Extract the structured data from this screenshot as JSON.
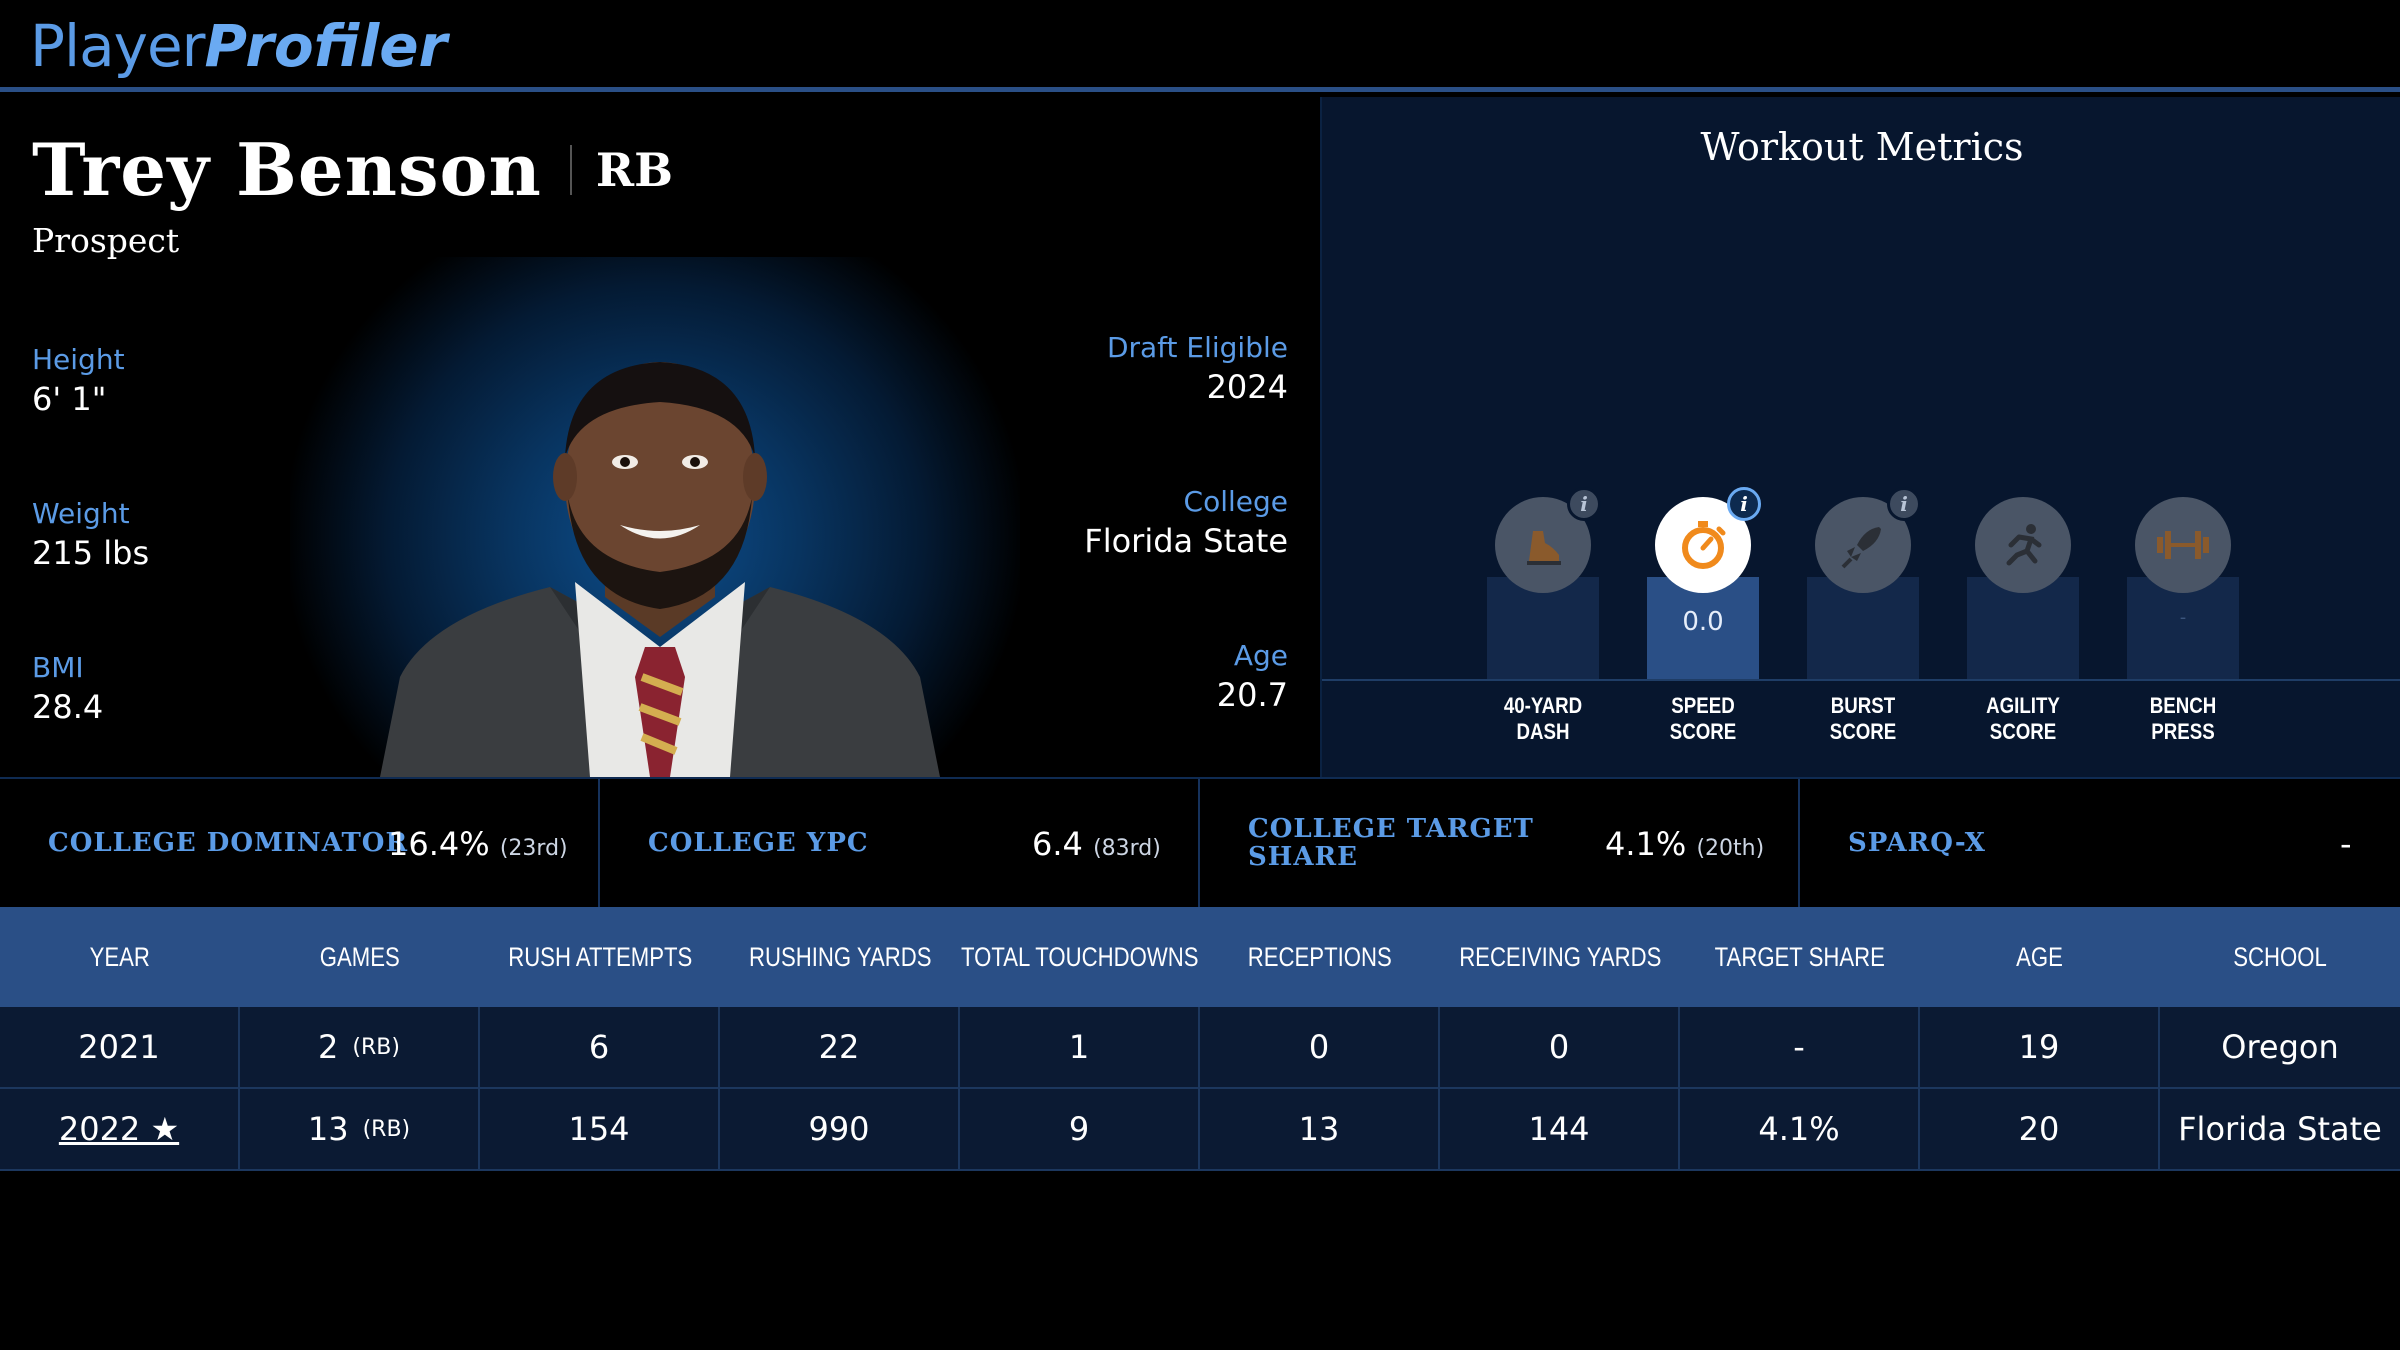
{
  "header": {
    "logo_part1": "Player",
    "logo_part2": "Profiler"
  },
  "player": {
    "name": "Trey Benson",
    "position": "RB",
    "status": "Prospect",
    "left_stats": [
      {
        "label": "Height",
        "value": "6' 1\""
      },
      {
        "label": "Weight",
        "value": "215 lbs"
      },
      {
        "label": "BMI",
        "value": "28.4"
      }
    ],
    "right_stats": [
      {
        "label": "Draft Eligible",
        "value": "2024"
      },
      {
        "label": "College",
        "value": "Florida State"
      },
      {
        "label": "Age",
        "value": "20.7"
      }
    ]
  },
  "workout": {
    "title": "Workout Metrics",
    "metrics": [
      {
        "label_line1": "40-YARD",
        "label_line2": "DASH",
        "value": "",
        "icon": "running-shoe-icon",
        "has_info": true,
        "active": false
      },
      {
        "label_line1": "SPEED",
        "label_line2": "SCORE",
        "value": "0.0",
        "icon": "stopwatch-icon",
        "has_info": true,
        "active": true
      },
      {
        "label_line1": "BURST",
        "label_line2": "SCORE",
        "value": "",
        "icon": "rocket-icon",
        "has_info": true,
        "active": false
      },
      {
        "label_line1": "AGILITY",
        "label_line2": "SCORE",
        "value": "",
        "icon": "running-person-icon",
        "has_info": false,
        "active": false
      },
      {
        "label_line1": "BENCH",
        "label_line2": "PRESS",
        "value": "-",
        "icon": "dumbbell-icon",
        "has_info": false,
        "active": false
      }
    ]
  },
  "college": [
    {
      "label_line1": "COLLEGE DOMINATOR",
      "label_line2": "",
      "value": "16.4%",
      "rank": "(23rd)"
    },
    {
      "label_line1": "COLLEGE YPC",
      "label_line2": "",
      "value": "6.4",
      "rank": "(83rd)"
    },
    {
      "label_line1": "COLLEGE TARGET",
      "label_line2": "SHARE",
      "value": "4.1%",
      "rank": "(20th)"
    },
    {
      "label_line1": "SPARQ-X",
      "label_line2": "",
      "value": "-",
      "rank": ""
    }
  ],
  "table": {
    "headers": [
      "YEAR",
      "GAMES",
      "RUSH ATTEMPTS",
      "RUSHING YARDS",
      "TOTAL TOUCHDOWNS",
      "RECEPTIONS",
      "RECEIVING YARDS",
      "TARGET SHARE",
      "AGE",
      "SCHOOL"
    ],
    "rows": [
      {
        "year": "2021",
        "games": "2",
        "games_pos": "(RB)",
        "rush_att": "6",
        "rush_yds": "22",
        "tds": "1",
        "rec": "0",
        "rec_yds": "0",
        "tgt_share": "-",
        "age": "19",
        "school": "Oregon"
      },
      {
        "year": "2022 ★",
        "games": "13",
        "games_pos": "(RB)",
        "rush_att": "154",
        "rush_yds": "990",
        "tds": "9",
        "rec": "13",
        "rec_yds": "144",
        "tgt_share": "4.1%",
        "age": "20",
        "school": "Florida State"
      }
    ]
  },
  "colors": {
    "accent_blue": "#5b9be6",
    "header_bar": "#2a4f86",
    "panel": "#07162e",
    "active_icon": "#f08a1c"
  }
}
